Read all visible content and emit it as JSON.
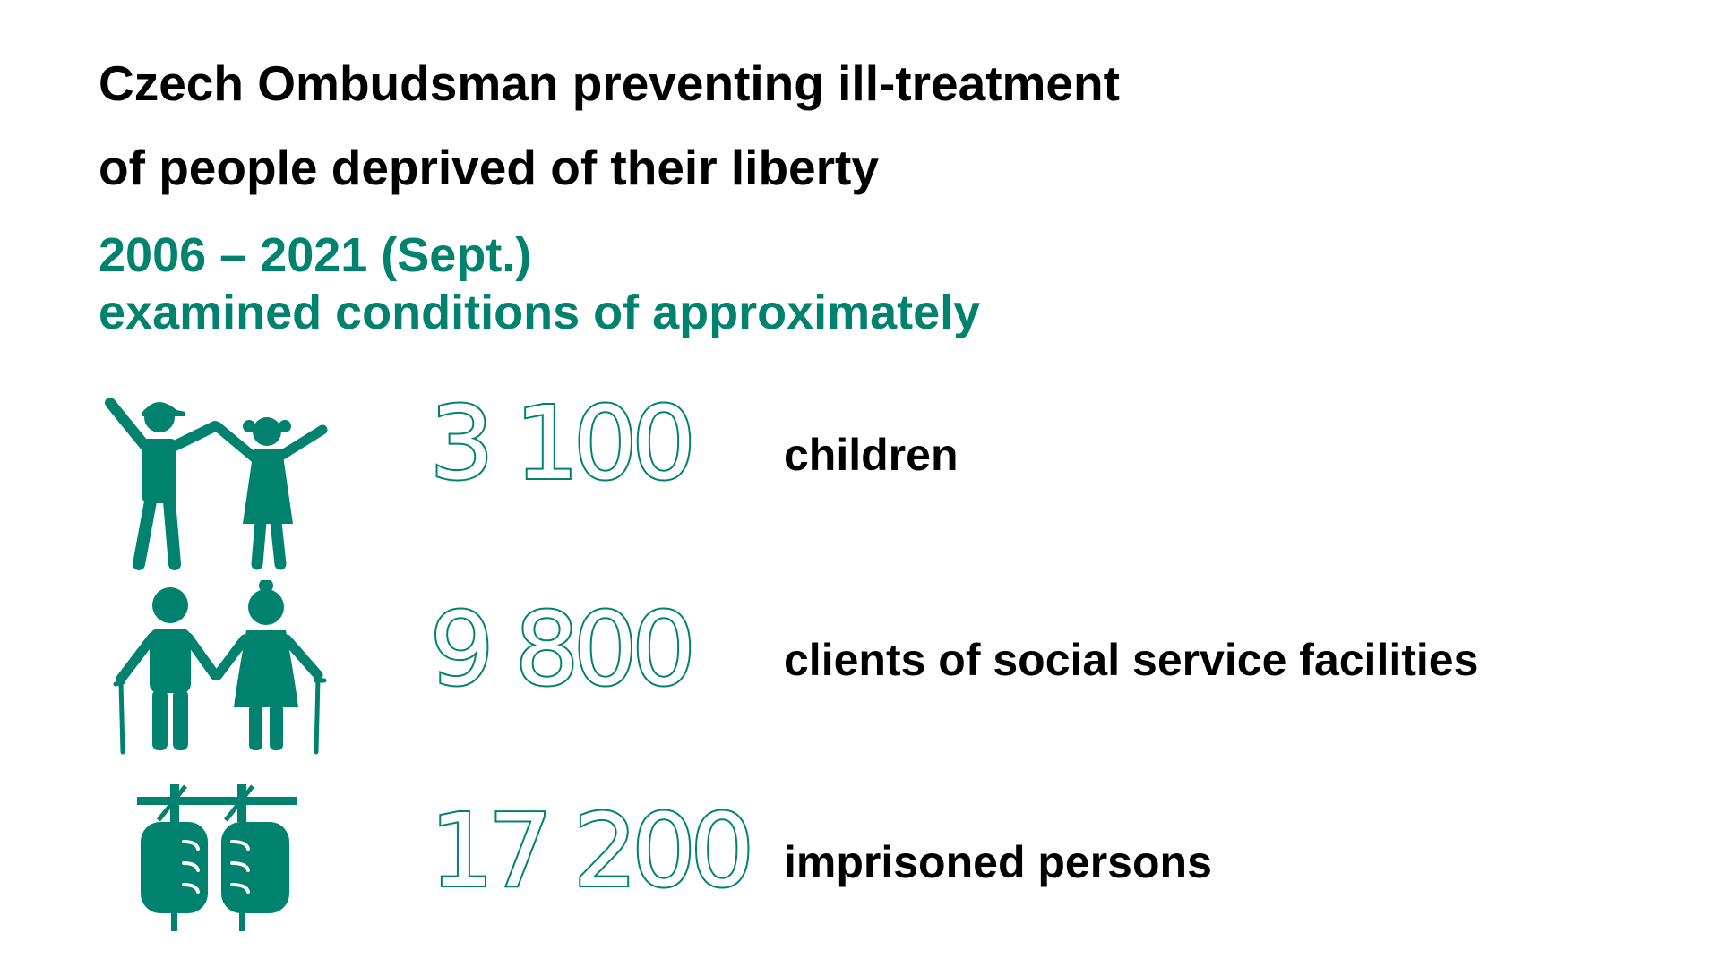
{
  "title": {
    "line1": "Czech Ombudsman preventing ill-treatment",
    "line2": "of people deprived of their liberty"
  },
  "subtitle": {
    "line1": "2006 – 2021 (Sept.)",
    "line2": "examined conditions of approximately"
  },
  "colors": {
    "accent": "#00826e",
    "text": "#000000",
    "background": "#ffffff"
  },
  "stats": [
    {
      "icon": "children-icon",
      "number": "3 100",
      "label": "children"
    },
    {
      "icon": "elderly-couple-icon",
      "number": "9 800",
      "label": "clients of social service facilities"
    },
    {
      "icon": "handcuffed-hands-icon",
      "number": "17 200",
      "label": "imprisoned persons"
    }
  ]
}
